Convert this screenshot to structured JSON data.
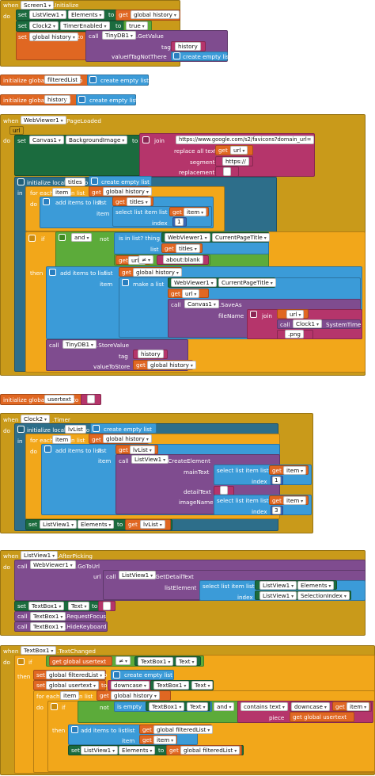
{
  "kw": {
    "when": "when",
    "do": "do",
    "set": "set",
    "to": "to",
    "get": "get",
    "call": "call",
    "in": "in",
    "if": "if",
    "then": "then",
    "and": "and",
    "not": "not",
    "for_each": "for each",
    "in_list": "in list",
    "initialize_global": "initialize global",
    "initialize_local": "initialize local",
    "item": "item",
    "index": "index",
    "list": "list",
    "tag": "tag",
    "thing": "thing",
    "segment": "segment",
    "replacement": "replacement",
    "dot": "."
  },
  "texts": {
    "screen1": "Screen1",
    "initialize": ".Initialize",
    "listview1": "ListView1",
    "elements": "Elements",
    "global_history": "global history",
    "clock2": "Clock2",
    "timerenabled": "TimerEnabled",
    "true": "true",
    "tinydb1": "TinyDB1",
    "getvalue": ".GetValue",
    "tag": "tag",
    "history": "history",
    "valueiftagnotthere": "valueIfTagNotThere",
    "create_empty_list": "create empty list",
    "filteredlist": "filteredList",
    "history_var": "history",
    "webviewer1": "WebViewer1",
    "pageloaded": ".PageLoaded",
    "url": "url",
    "canvas1": "Canvas1",
    "backgroundimage": "BackgroundImage",
    "join": "join",
    "favicons_url": "https://www.google.com/s2/favicons?domain_url=",
    "replace_all_text": "replace all text",
    "get_url": "url",
    "https": "https://",
    "titles": "titles",
    "get_titles": "titles",
    "add_items_to_list": "add items to list",
    "select_list_item_list": "select list item  list",
    "get_item": "item",
    "idx1": "1",
    "is_in_list": "is in list? thing",
    "currentpagetitle": "CurrentPageTitle",
    "neq": "≠",
    "about_blank": "about:blank",
    "make_a_list": "make a list",
    "saveas": ".SaveAs",
    "filename": "fileName",
    "clock1": "Clock1",
    "systemtime": "SystemTime",
    "png": ".png",
    "storevalue": ".StoreValue",
    "valuetostore": "valueToStore",
    "usertext": "usertext",
    "timer": ".Timer",
    "lvlist": "lvList",
    "createelement": ".CreateElement",
    "maintext": "mainText",
    "detailtext": "detailText",
    "imagename": "imageName",
    "idx3": "3",
    "get_lvlist": "lvList",
    "afterpicking": ".AfterPicking",
    "gotourl": ".GoToUrl",
    "getdetailtext": ".GetDetailText",
    "listelement": "listElement",
    "selectionindex": "SelectionIndex",
    "textbox1": "TextBox1",
    "text": "Text",
    "requestfocus": ".RequestFocus",
    "hidekeyboard": ".HideKeyboard",
    "textchanged": ".TextChanged",
    "global_usertext": "global usertext",
    "global_filteredlist": "global filteredList",
    "downcase": "downcase",
    "is_empty": "is empty",
    "contains_text": "contains  text",
    "piece": "piece",
    "global_history2": "global history"
  },
  "colors": {
    "event": "#c99a1a",
    "component_setter": "#1b6b3e",
    "variable": "#e06722",
    "list": "#3b9bd8",
    "control": "#f2a71a",
    "text": "#b5356b",
    "logic": "#5cab3a",
    "component_method": "#7f4c8f",
    "math": "#3a68b8"
  }
}
